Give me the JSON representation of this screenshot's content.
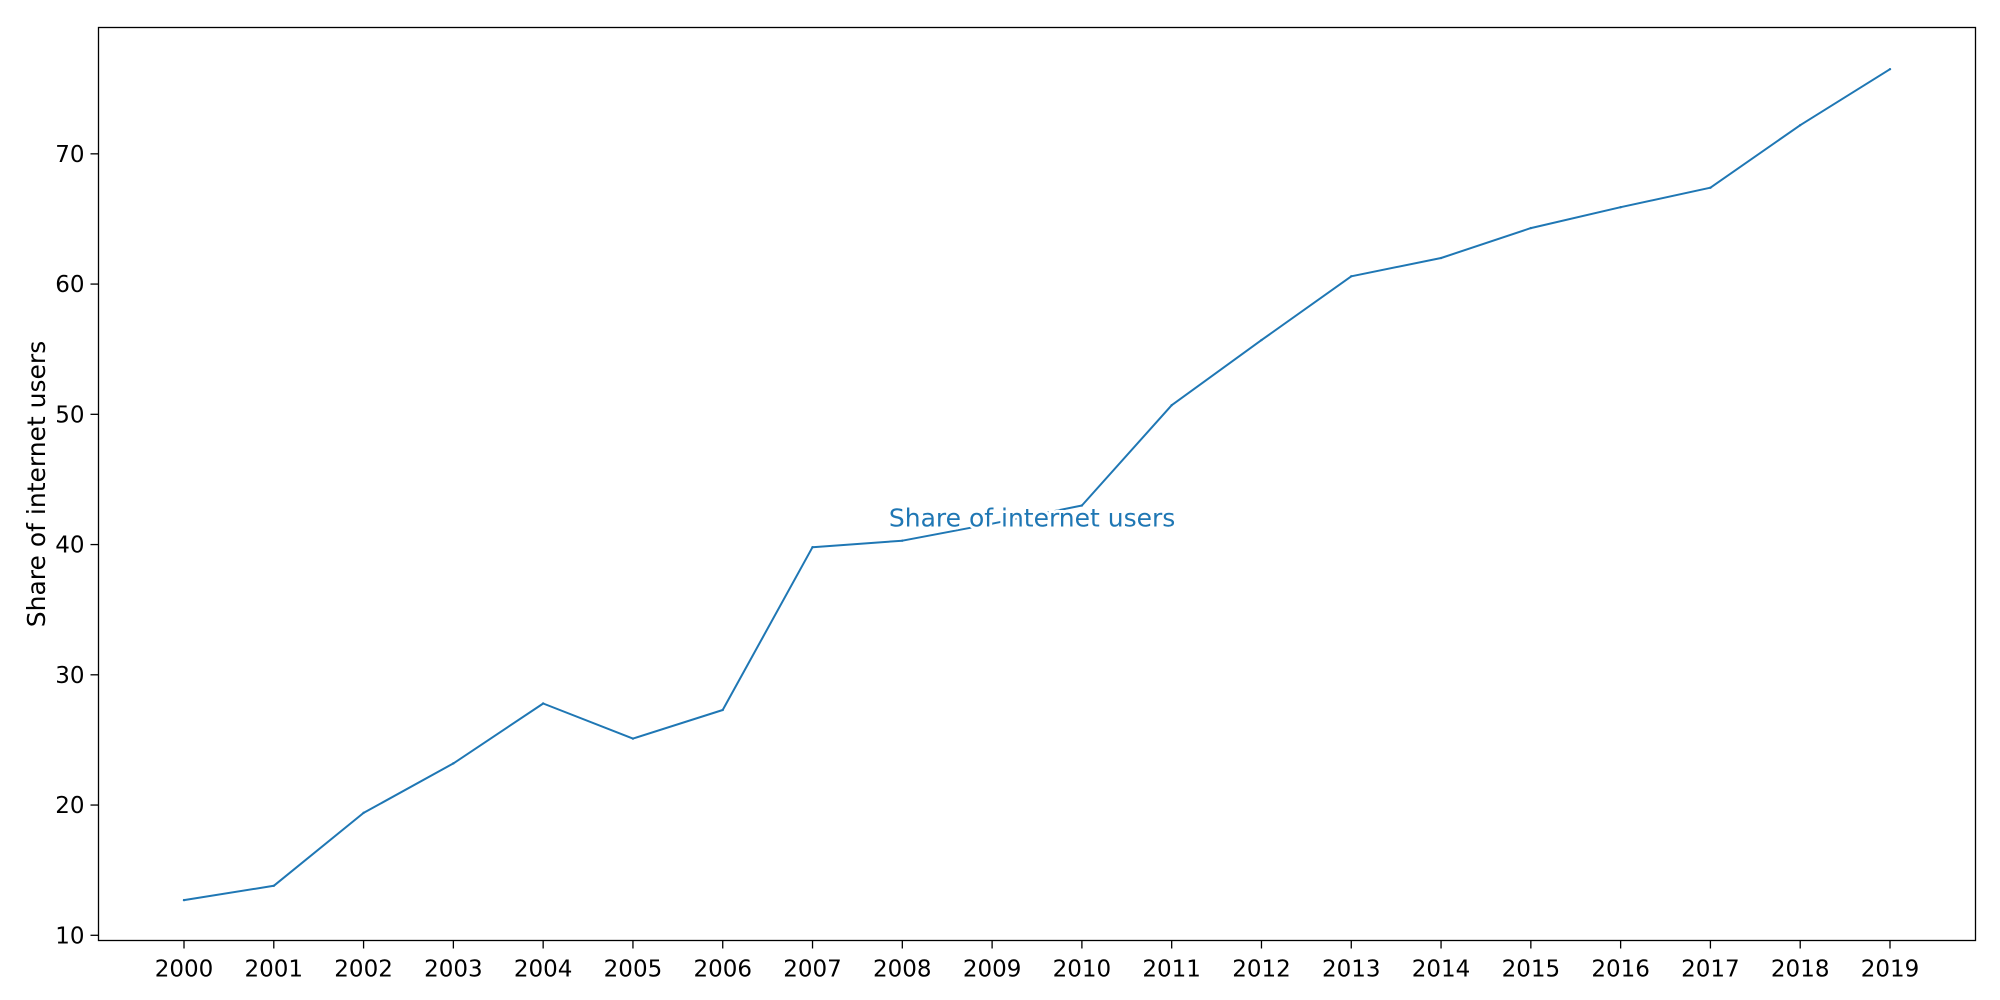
{
  "chart_data": {
    "type": "line",
    "title": "",
    "xlabel": "",
    "ylabel": "Share of internet users",
    "ylim": [
      9.6,
      79.7
    ],
    "yticks": [
      10,
      20,
      30,
      40,
      50,
      60,
      70
    ],
    "grid": false,
    "legend": "none",
    "categories": [
      "2000",
      "2001",
      "2002",
      "2003",
      "2004",
      "2005",
      "2006",
      "2007",
      "2008",
      "2009",
      "2010",
      "2011",
      "2012",
      "2013",
      "2014",
      "2015",
      "2016",
      "2017",
      "2018",
      "2019"
    ],
    "series": [
      {
        "name": "Share of internet users",
        "color": "#1f77b4",
        "values": [
          12.7,
          13.8,
          19.4,
          23.2,
          27.8,
          25.1,
          27.3,
          39.8,
          40.3,
          41.6,
          43.0,
          50.7,
          55.7,
          60.6,
          62.0,
          64.3,
          65.9,
          67.4,
          72.2,
          76.5
        ]
      }
    ],
    "annotations": [
      {
        "text": "Share of internet users",
        "x": "2009",
        "y": 42,
        "color": "#1f77b4"
      }
    ]
  }
}
